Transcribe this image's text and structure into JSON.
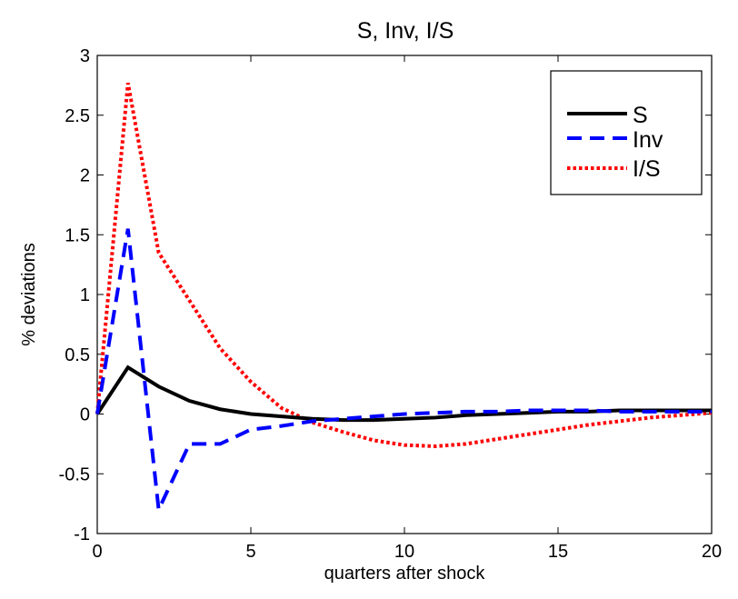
{
  "chart_data": {
    "type": "line",
    "title": "S, Inv, I/S",
    "xlabel": "quarters after shock",
    "ylabel": "% deviations",
    "xlim": [
      0,
      20
    ],
    "ylim": [
      -1,
      3
    ],
    "xticks": [
      0,
      5,
      10,
      15,
      20
    ],
    "yticks": [
      -1,
      -0.5,
      0,
      0.5,
      1,
      1.5,
      2,
      2.5,
      3
    ],
    "xtick_labels": [
      "0",
      "5",
      "10",
      "15",
      "20"
    ],
    "ytick_labels": [
      "-1",
      "-0.5",
      "0",
      "0.5",
      "1",
      "1.5",
      "2",
      "2.5",
      "3"
    ],
    "grid": false,
    "legend_position": "top-right",
    "x": [
      0,
      1,
      2,
      3,
      4,
      5,
      6,
      7,
      8,
      9,
      10,
      11,
      12,
      13,
      14,
      15,
      16,
      17,
      18,
      19,
      20
    ],
    "series": [
      {
        "name": "S",
        "color": "#000000",
        "style": "solid",
        "values": [
          0,
          0.39,
          0.23,
          0.11,
          0.04,
          0.0,
          -0.02,
          -0.04,
          -0.05,
          -0.05,
          -0.04,
          -0.03,
          -0.01,
          0.0,
          0.01,
          0.02,
          0.02,
          0.03,
          0.03,
          0.03,
          0.03
        ]
      },
      {
        "name": "Inv",
        "color": "#0000ff",
        "style": "dashed",
        "values": [
          0,
          1.55,
          -0.8,
          -0.25,
          -0.25,
          -0.13,
          -0.1,
          -0.06,
          -0.04,
          -0.02,
          0.0,
          0.01,
          0.02,
          0.02,
          0.03,
          0.03,
          0.03,
          0.02,
          0.02,
          0.02,
          0.02
        ]
      },
      {
        "name": "I/S",
        "color": "#ff0000",
        "style": "dotted",
        "values": [
          0,
          2.77,
          1.35,
          0.95,
          0.55,
          0.27,
          0.05,
          -0.07,
          -0.15,
          -0.22,
          -0.26,
          -0.27,
          -0.25,
          -0.21,
          -0.17,
          -0.13,
          -0.09,
          -0.06,
          -0.03,
          -0.01,
          0.01
        ]
      }
    ]
  }
}
